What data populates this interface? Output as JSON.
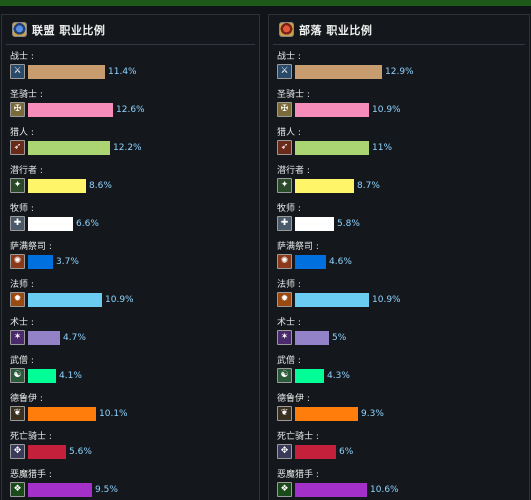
{
  "alliance": {
    "title": "联盟 职业比例",
    "classes": [
      {
        "name": "战士 :",
        "percent": 11.4,
        "label": "11.4%",
        "color": "#c79c6e",
        "icon": "warrior-sword-icon"
      },
      {
        "name": "圣骑士 :",
        "percent": 12.6,
        "label": "12.6%",
        "color": "#f58cba",
        "icon": "paladin-hammer-icon"
      },
      {
        "name": "猎人 :",
        "percent": 12.2,
        "label": "12.2%",
        "color": "#abd473",
        "icon": "hunter-bow-icon"
      },
      {
        "name": "潜行者 :",
        "percent": 8.6,
        "label": "8.6%",
        "color": "#fff569",
        "icon": "rogue-dagger-icon"
      },
      {
        "name": "牧师 :",
        "percent": 6.6,
        "label": "6.6%",
        "color": "#ffffff",
        "icon": "priest-staff-icon"
      },
      {
        "name": "萨满祭司 :",
        "percent": 3.7,
        "label": "3.7%",
        "color": "#0070de",
        "icon": "shaman-totem-icon"
      },
      {
        "name": "法师 :",
        "percent": 10.9,
        "label": "10.9%",
        "color": "#69ccf0",
        "icon": "mage-fire-icon"
      },
      {
        "name": "术士 :",
        "percent": 4.7,
        "label": "4.7%",
        "color": "#9482c9",
        "icon": "warlock-spell-icon"
      },
      {
        "name": "武僧 :",
        "percent": 4.1,
        "label": "4.1%",
        "color": "#00ff96",
        "icon": "monk-staff-icon"
      },
      {
        "name": "德鲁伊 :",
        "percent": 10.1,
        "label": "10.1%",
        "color": "#ff7d0a",
        "icon": "druid-claw-icon"
      },
      {
        "name": "死亡骑士 :",
        "percent": 5.6,
        "label": "5.6%",
        "color": "#c41f3b",
        "icon": "deathknight-rune-icon"
      },
      {
        "name": "恶魔猎手 :",
        "percent": 9.5,
        "label": "9.5%",
        "color": "#a330c9",
        "icon": "demonhunter-glaive-icon"
      }
    ]
  },
  "horde": {
    "title": "部落 职业比例",
    "classes": [
      {
        "name": "战士 :",
        "percent": 12.9,
        "label": "12.9%",
        "color": "#c79c6e",
        "icon": "warrior-sword-icon"
      },
      {
        "name": "圣骑士 :",
        "percent": 10.9,
        "label": "10.9%",
        "color": "#f58cba",
        "icon": "paladin-hammer-icon"
      },
      {
        "name": "猎人 :",
        "percent": 11,
        "label": "11%",
        "color": "#abd473",
        "icon": "hunter-bow-icon"
      },
      {
        "name": "潜行者 :",
        "percent": 8.7,
        "label": "8.7%",
        "color": "#fff569",
        "icon": "rogue-dagger-icon"
      },
      {
        "name": "牧师 :",
        "percent": 5.8,
        "label": "5.8%",
        "color": "#ffffff",
        "icon": "priest-staff-icon"
      },
      {
        "name": "萨满祭司 :",
        "percent": 4.6,
        "label": "4.6%",
        "color": "#0070de",
        "icon": "shaman-totem-icon"
      },
      {
        "name": "法师 :",
        "percent": 10.9,
        "label": "10.9%",
        "color": "#69ccf0",
        "icon": "mage-fire-icon"
      },
      {
        "name": "术士 :",
        "percent": 5,
        "label": "5%",
        "color": "#9482c9",
        "icon": "warlock-spell-icon"
      },
      {
        "name": "武僧 :",
        "percent": 4.3,
        "label": "4.3%",
        "color": "#00ff96",
        "icon": "monk-staff-icon"
      },
      {
        "name": "德鲁伊 :",
        "percent": 9.3,
        "label": "9.3%",
        "color": "#ff7d0a",
        "icon": "druid-claw-icon"
      },
      {
        "name": "死亡骑士 :",
        "percent": 6,
        "label": "6%",
        "color": "#c41f3b",
        "icon": "deathknight-rune-icon"
      },
      {
        "name": "恶魔猎手 :",
        "percent": 10.6,
        "label": "10.6%",
        "color": "#a330c9",
        "icon": "demonhunter-glaive-icon"
      }
    ]
  },
  "chart_data": [
    {
      "type": "bar",
      "title": "联盟 职业比例",
      "categories": [
        "战士",
        "圣骑士",
        "猎人",
        "潜行者",
        "牧师",
        "萨满祭司",
        "法师",
        "术士",
        "武僧",
        "德鲁伊",
        "死亡骑士",
        "恶魔猎手"
      ],
      "values": [
        11.4,
        12.6,
        12.2,
        8.6,
        6.6,
        3.7,
        10.9,
        4.7,
        4.1,
        10.1,
        5.6,
        9.5
      ]
    },
    {
      "type": "bar",
      "title": "部落 职业比例",
      "categories": [
        "战士",
        "圣骑士",
        "猎人",
        "潜行者",
        "牧师",
        "萨满祭司",
        "法师",
        "术士",
        "武僧",
        "德鲁伊",
        "死亡骑士",
        "恶魔猎手"
      ],
      "values": [
        12.9,
        10.9,
        11,
        8.7,
        5.8,
        4.6,
        10.9,
        5,
        4.3,
        9.3,
        6,
        10.6
      ]
    }
  ]
}
